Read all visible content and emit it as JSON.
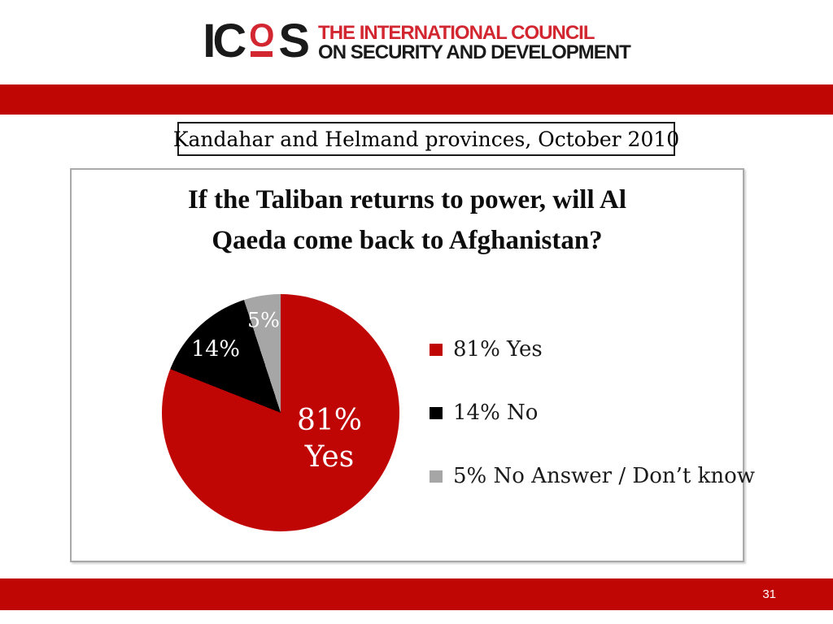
{
  "theme": {
    "band_red": "#C00505",
    "brand_red": "#D22630",
    "text_black": "#1A1A1A"
  },
  "logo": {
    "mark_left": "IC",
    "mark_o": "O",
    "mark_right": "S",
    "line1": "THE INTERNATIONAL COUNCIL",
    "line2": "ON SECURITY AND DEVELOPMENT"
  },
  "caption": {
    "text": "Kandahar and Helmand provinces, October 2010"
  },
  "chart": {
    "title_line1": "If the Taliban returns to power, will Al",
    "title_line2": "Qaeda come back to Afghanistan?",
    "slices": [
      {
        "label": "81%",
        "sublabel": "Yes"
      },
      {
        "label": "14%"
      },
      {
        "label": "5%"
      }
    ],
    "legend": [
      {
        "label": "81% Yes"
      },
      {
        "label": "14% No"
      },
      {
        "label": "5% No Answer / Don’t know"
      }
    ]
  },
  "chart_data": {
    "type": "pie",
    "title": "If the Taliban returns to power, will Al Qaeda come back to Afghanistan?",
    "subtitle": "Kandahar and Helmand provinces, October 2010",
    "categories": [
      "Yes",
      "No",
      "No Answer / Don't know"
    ],
    "values": [
      81,
      14,
      5
    ],
    "unit": "%",
    "colors": [
      "#C00505",
      "#000000",
      "#A6A6A6"
    ],
    "start_angle_deg": 0,
    "direction": "clockwise",
    "legend_position": "right",
    "slice_text_labels": [
      "81% Yes",
      "14%",
      "5%"
    ]
  },
  "footer": {
    "page_number": "31"
  }
}
